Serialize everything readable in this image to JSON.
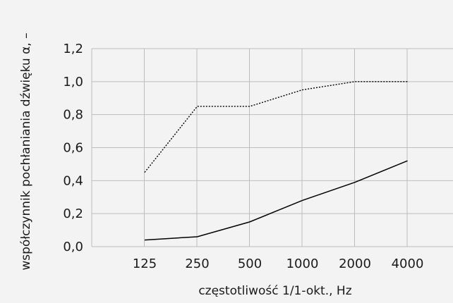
{
  "chart_data": {
    "type": "line",
    "title": "",
    "xlabel": "częstotliwość 1/1-okt., Hz",
    "ylabel": "współczynnik pochłaniania dźwięku α, –",
    "categories": [
      "125",
      "250",
      "500",
      "1000",
      "2000",
      "4000"
    ],
    "ylim": [
      0,
      1.2
    ],
    "yticks": [
      "0,0",
      "0,2",
      "0,4",
      "0,6",
      "0,8",
      "1,0",
      "1,2"
    ],
    "grid": true,
    "legend": "none",
    "series": [
      {
        "style": "dotted",
        "color": "#000000",
        "values": [
          0.45,
          0.85,
          0.85,
          0.95,
          1.0,
          1.0
        ]
      },
      {
        "style": "solid",
        "color": "#000000",
        "values": [
          0.04,
          0.06,
          0.15,
          0.28,
          0.39,
          0.52
        ]
      }
    ]
  }
}
